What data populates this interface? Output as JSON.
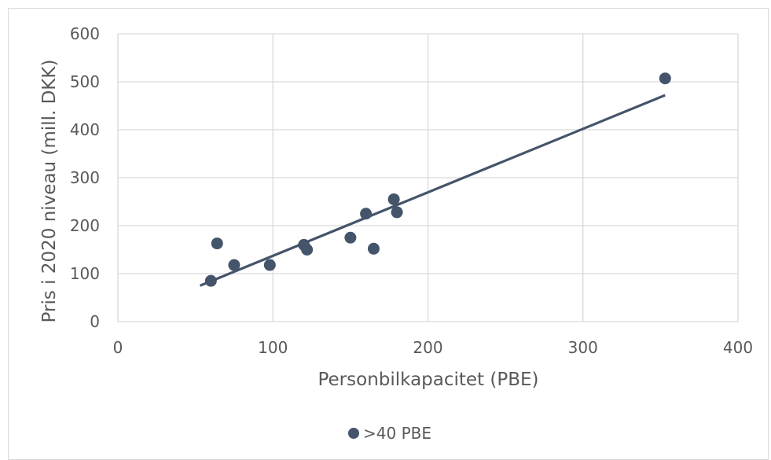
{
  "chart_data": {
    "type": "scatter",
    "title": "",
    "xlabel": "Personbilkapacitet (PBE)",
    "ylabel": "Pris i 2020 niveau (mill. DKK)",
    "xlim": [
      0,
      400
    ],
    "ylim": [
      0,
      600
    ],
    "x_ticks": [
      "0",
      "100",
      "200",
      "300",
      "400"
    ],
    "y_ticks": [
      "0",
      "100",
      "200",
      "300",
      "400",
      "500",
      "600"
    ],
    "grid": true,
    "legend_position": "bottom",
    "series": [
      {
        "name": ">40 PBE",
        "color": "#44546a",
        "points": [
          {
            "x": 60,
            "y": 85
          },
          {
            "x": 64,
            "y": 163
          },
          {
            "x": 75,
            "y": 118
          },
          {
            "x": 98,
            "y": 118
          },
          {
            "x": 120,
            "y": 160
          },
          {
            "x": 122,
            "y": 150
          },
          {
            "x": 150,
            "y": 175
          },
          {
            "x": 160,
            "y": 225
          },
          {
            "x": 165,
            "y": 152
          },
          {
            "x": 178,
            "y": 255
          },
          {
            "x": 180,
            "y": 228
          },
          {
            "x": 353,
            "y": 507
          }
        ]
      }
    ],
    "trendline": {
      "type": "linear",
      "color": "#44546a",
      "start": {
        "x": 53,
        "y": 75
      },
      "end": {
        "x": 353,
        "y": 472
      }
    }
  }
}
